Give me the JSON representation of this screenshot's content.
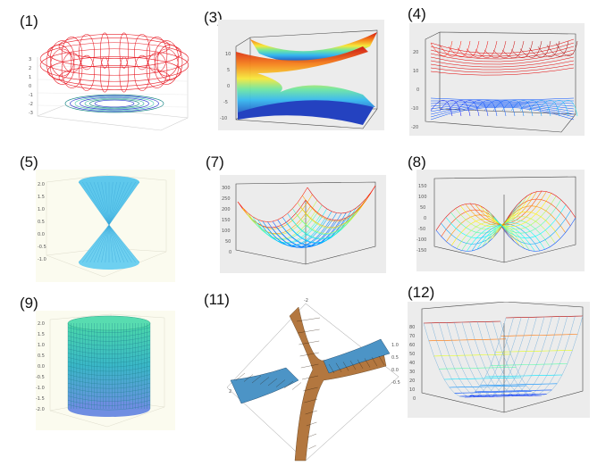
{
  "panels": [
    {
      "label": "(1)"
    },
    {
      "label": "(3)"
    },
    {
      "label": "(4)"
    },
    {
      "label": "(5)"
    },
    {
      "label": "(7)"
    },
    {
      "label": "(8)"
    },
    {
      "label": "(9)"
    },
    {
      "label": "(11)"
    },
    {
      "label": "(12)"
    }
  ],
  "axes": {
    "p3_z": [
      "10",
      "5",
      "0",
      "-5",
      "-10"
    ],
    "p4_z": [
      "20",
      "10",
      "0",
      "-10",
      "-20"
    ],
    "p7_z": [
      "300",
      "250",
      "200",
      "150",
      "100",
      "50",
      "0"
    ],
    "p8_z": [
      "150",
      "100",
      "50",
      "0",
      "-50",
      "-100",
      "-150"
    ],
    "p9_z": [
      "2.0",
      "1.5",
      "1.0",
      "0.5",
      "0.0",
      "-0.5",
      "-1.0",
      "-1.5",
      "-2.0"
    ],
    "p12_z": [
      "80",
      "70",
      "60",
      "50",
      "40",
      "30",
      "20",
      "10",
      "0"
    ]
  },
  "colors": {
    "red_wire": "#e8202a",
    "blue_wire": "#2a3cd0",
    "cyan_surface": "#5ec8ec",
    "panel_gray": "#ececec",
    "panel_cream": "#fbfbef",
    "copper": "#b3773f",
    "steel": "#4c94c6"
  }
}
